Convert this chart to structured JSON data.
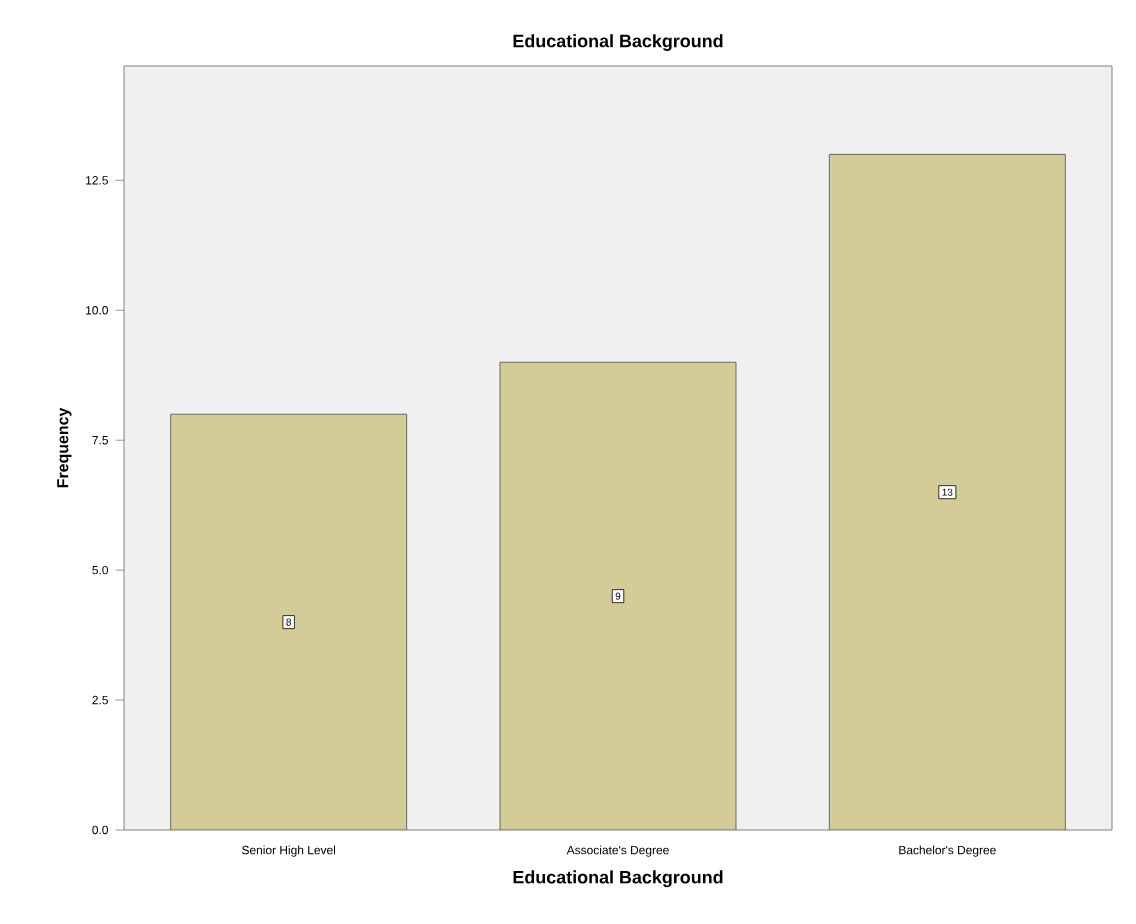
{
  "chart_data": {
    "type": "bar",
    "title": "Educational Background",
    "xlabel": "Educational Background",
    "ylabel": "Frequency",
    "categories": [
      "Senior High Level",
      "Associate's Degree",
      "Bachelor's Degree"
    ],
    "values": [
      8,
      9,
      13
    ],
    "color": "#d3cc98",
    "data_labels": true,
    "ylim": [
      0,
      14.7
    ],
    "yticks": [
      {
        "value": 0,
        "label": "0.0"
      },
      {
        "value": 2.5,
        "label": "2.5"
      },
      {
        "value": 5,
        "label": "5.0"
      },
      {
        "value": 7.5,
        "label": "7.5"
      },
      {
        "value": 10,
        "label": "10.0"
      },
      {
        "value": 12.5,
        "label": "12.5"
      }
    ],
    "grid": false
  }
}
